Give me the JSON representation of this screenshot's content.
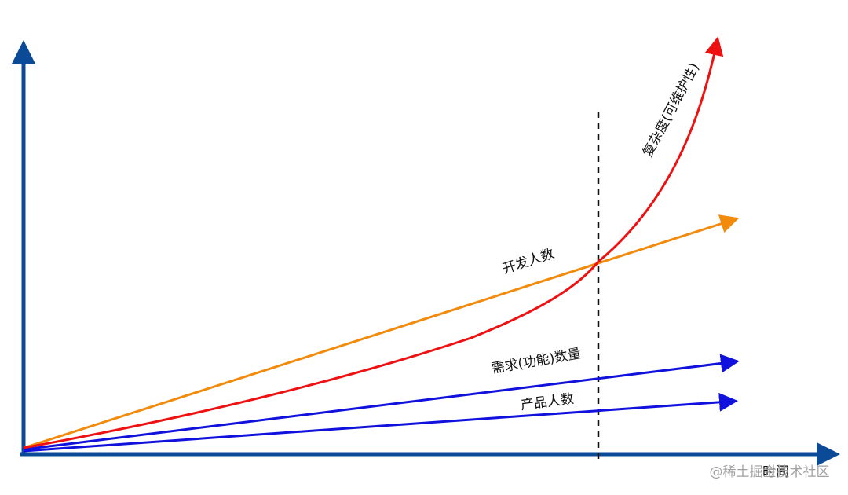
{
  "labels": {
    "complexity": "复杂度(可维护性)",
    "developers": "开发人数",
    "requirements": "需求(功能)数量",
    "product_people": "产品人数"
  },
  "axes": {
    "x_label": "时间"
  },
  "watermark": "@稀土掘金技术社区"
}
